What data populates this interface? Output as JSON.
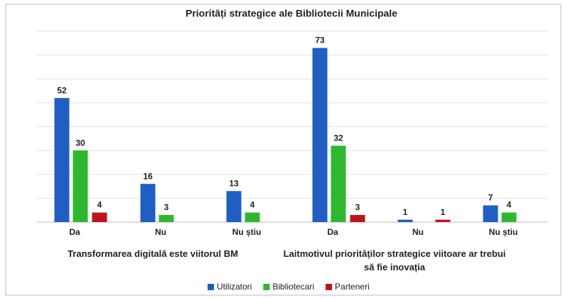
{
  "chart_data": {
    "type": "bar",
    "title": "Priorități strategice ale Bibliotecii Municipale",
    "categories": [
      "Da",
      "Nu",
      "Nu știu",
      "Da",
      "Nu",
      "Nu știu"
    ],
    "group_labels": [
      "Transformarea digitală este viitorul BM",
      "Laitmotivul priorităților strategice viitoare ar trebui să fie inovația"
    ],
    "series": [
      {
        "name": "Utilizatori",
        "color": "#1f5fc4",
        "values": [
          52,
          16,
          13,
          73,
          1,
          7
        ]
      },
      {
        "name": "Bibliotecari",
        "color": "#2eb82e",
        "values": [
          30,
          3,
          4,
          32,
          null,
          4
        ]
      },
      {
        "name": "Parteneri",
        "color": "#c0141c",
        "values": [
          4,
          null,
          null,
          3,
          1,
          null
        ]
      }
    ],
    "ylim": [
      0,
      80
    ],
    "yticks": [
      0,
      10,
      20,
      30,
      40,
      50,
      60,
      70,
      80
    ],
    "grid": true,
    "legend": "bottom"
  }
}
